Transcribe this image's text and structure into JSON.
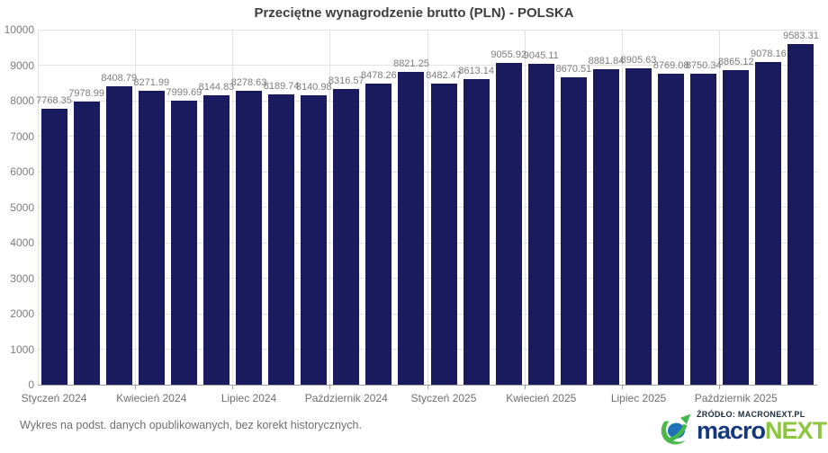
{
  "title": "Przeciętne wynagrodzenie brutto (PLN) - POLSKA",
  "footer_note": "Wykres na podst. danych opublikowanych, bez korekt historycznych.",
  "source": {
    "label": "ŹRÓDŁO: MACRONEXT.PL",
    "brand_part1": "macro",
    "brand_part2": "NEXT"
  },
  "colors": {
    "bar": "#1a1a5f",
    "brand_blue": "#15387d",
    "brand_green": "#8cc63e",
    "grid": "#e3e3e3",
    "axis": "#9f9f9f",
    "label_gray": "#7c7c7c"
  },
  "chart_data": {
    "type": "bar",
    "title": "Przeciętne wynagrodzenie brutto (PLN) - POLSKA",
    "values": [
      7768.35,
      7978.99,
      8408.79,
      8271.99,
      7999.69,
      8144.83,
      8278.63,
      8189.74,
      8140.98,
      8316.57,
      8478.26,
      8821.25,
      8482.47,
      8613.14,
      9055.92,
      9045.11,
      8670.51,
      8881.84,
      8905.63,
      8769.08,
      8750.34,
      8865.12,
      9078.16,
      9583.31
    ],
    "data_labels_shown": true,
    "x_tick_labels": [
      "Styczeń 2024",
      "Kwiecień 2024",
      "Lipiec 2024",
      "Październik 2024",
      "Styczeń 2025",
      "Kwiecień 2025",
      "Lipiec 2025",
      "Październik 2025"
    ],
    "x_tick_every": 3,
    "y_ticks": [
      0,
      1000,
      2000,
      3000,
      4000,
      5000,
      6000,
      7000,
      8000,
      9000,
      10000
    ],
    "ylim": [
      0,
      10000
    ],
    "grid": true,
    "legend_position": "none",
    "xlabel": "",
    "ylabel": ""
  }
}
